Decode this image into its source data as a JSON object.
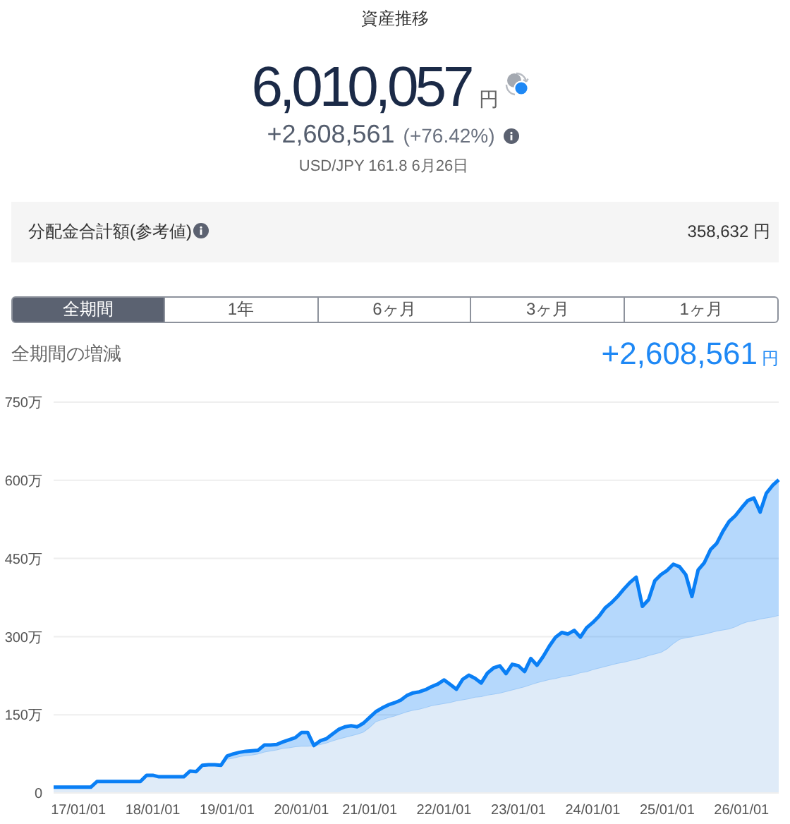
{
  "chart_data": {
    "type": "area",
    "title": "資産推移",
    "annotations": [
      "6,010,057",
      "円",
      "+2,608,561",
      "(+76.42%)",
      "USD/JPY 161.8 6月26日",
      "分配金合計額(参考値)",
      "358,632 円",
      "全期間",
      "1年",
      "6ヶ月",
      "3ヶ月",
      "1ヶ月",
      "全期間の増減",
      "+2,608,561",
      "円"
    ],
    "categories": [
      null,
      null,
      null,
      null,
      "17/01/01",
      null,
      null,
      null,
      null,
      null,
      null,
      null,
      null,
      null,
      null,
      null,
      "18/01/01",
      null,
      null,
      null,
      null,
      null,
      null,
      null,
      null,
      null,
      null,
      null,
      "19/01/01",
      null,
      null,
      null,
      null,
      null,
      null,
      null,
      null,
      null,
      null,
      null,
      "20/01/01",
      null,
      null,
      null,
      null,
      null,
      null,
      null,
      null,
      null,
      null,
      "21/01/01",
      null,
      null,
      null,
      null,
      null,
      null,
      null,
      null,
      null,
      null,
      null,
      "22/01/01",
      null,
      null,
      null,
      null,
      null,
      null,
      null,
      null,
      null,
      null,
      null,
      "23/01/01",
      null,
      null,
      null,
      null,
      null,
      null,
      null,
      null,
      null,
      null,
      null,
      "24/01/01",
      null,
      null,
      null,
      null,
      null,
      null,
      null,
      null,
      null,
      null,
      null,
      "25/01/01",
      null,
      null,
      null,
      null,
      null,
      null,
      null,
      null,
      null,
      null,
      null,
      "26/01/01",
      null,
      null,
      null,
      null,
      null,
      null
    ],
    "series": [
      {
        "color": "#dfebf8",
        "values": [
          10,
          10,
          10,
          10,
          10,
          10,
          10,
          20,
          20,
          20,
          20,
          20,
          20,
          20,
          20,
          31,
          31,
          30,
          30,
          30,
          30,
          30,
          40,
          40,
          50,
          51,
          51,
          51,
          64,
          66,
          69,
          71,
          72,
          74,
          78,
          80,
          82,
          85,
          86,
          88,
          89,
          89,
          90,
          92,
          95,
          99,
          103,
          106,
          109,
          112,
          116,
          125,
          136,
          140,
          144,
          147,
          151,
          155,
          158,
          160,
          163,
          167,
          169,
          171,
          173,
          176,
          178,
          180,
          183,
          184,
          187,
          189,
          191,
          194,
          197,
          200,
          203,
          207,
          211,
          214,
          217,
          219,
          222,
          224,
          226,
          230,
          232,
          236,
          239,
          242,
          245,
          248,
          250,
          253,
          256,
          259,
          263,
          266,
          269,
          276,
          286,
          294,
          297,
          299,
          302,
          304,
          307,
          310,
          312,
          314,
          318,
          324,
          328,
          330,
          333,
          335,
          337,
          340
        ]
      },
      {
        "color": "#0a7ff5",
        "values": [
          11,
          11,
          11,
          11,
          11,
          11,
          11,
          22,
          22,
          22,
          22,
          22,
          22,
          22,
          22,
          34,
          34,
          31,
          31,
          31,
          31,
          31,
          42,
          41,
          53,
          54,
          54,
          53,
          71,
          75,
          78,
          80,
          81,
          82,
          92,
          92,
          93,
          98,
          102,
          106,
          116,
          116,
          91,
          100,
          104,
          113,
          122,
          127,
          129,
          127,
          134,
          145,
          156,
          163,
          169,
          173,
          178,
          187,
          192,
          194,
          198,
          204,
          209,
          217,
          208,
          199,
          218,
          226,
          220,
          211,
          230,
          240,
          244,
          229,
          247,
          244,
          233,
          258,
          245,
          262,
          282,
          299,
          308,
          305,
          312,
          299,
          317,
          327,
          339,
          355,
          365,
          377,
          391,
          404,
          414,
          358,
          371,
          407,
          419,
          427,
          439,
          434,
          419,
          377,
          428,
          442,
          467,
          479,
          502,
          521,
          532,
          547,
          561,
          566,
          539,
          575,
          590,
          601
        ]
      }
    ],
    "ylim": [
      0,
      750
    ],
    "yticks": [
      0,
      {
        "value": 150,
        "label": "150万"
      },
      {
        "value": 300,
        "label": "300万"
      },
      {
        "value": 450,
        "label": "450万"
      },
      {
        "value": 600,
        "label": "600万"
      },
      {
        "value": 750,
        "label": "750万"
      }
    ],
    "grid": "y"
  }
}
